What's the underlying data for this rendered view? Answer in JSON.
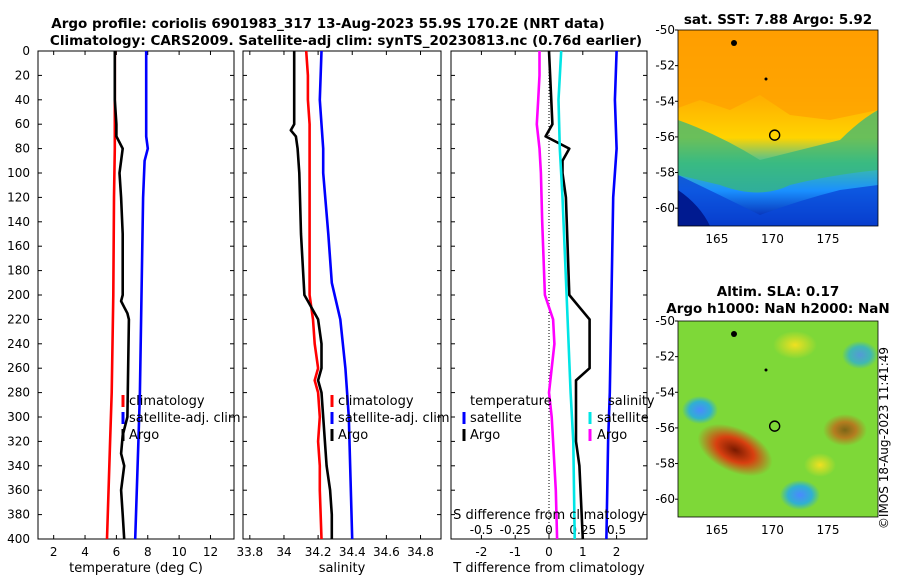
{
  "title_line1": "Argo profile: coriolis 6901983_317 13-Aug-2023 55.9S 170.2E (NRT data)",
  "title_line2": "Climatology: CARS2009. Satellite-adj clim: synTS_20230813.nc (0.76d earlier)",
  "credit": "©IMOS 18-Aug-2023 11:41:49",
  "colors": {
    "climatology": "#ff0000",
    "satellite": "#0000ff",
    "argo": "#000000",
    "salinity_satellite": "#00e5e5",
    "salinity_argo": "#ff00ff",
    "axis": "#000000"
  },
  "chart_data": [
    {
      "type": "line",
      "id": "temperature",
      "xlabel": "temperature (deg C)",
      "ylabel": "",
      "xlim": [
        1,
        13.5
      ],
      "ylim": [
        400,
        0
      ],
      "xticks": [
        2,
        4,
        6,
        8,
        10,
        12
      ],
      "yticks": [
        0,
        20,
        40,
        60,
        80,
        100,
        120,
        140,
        160,
        180,
        200,
        220,
        240,
        260,
        280,
        300,
        320,
        340,
        360,
        380,
        400
      ],
      "legend": [
        "climatology",
        "satellite-adj. clim",
        "Argo"
      ],
      "series": [
        {
          "name": "climatology",
          "color": "#ff0000",
          "depth": [
            0,
            40,
            80,
            120,
            200,
            280,
            320,
            400
          ],
          "values": [
            5.9,
            5.9,
            5.9,
            5.85,
            5.8,
            5.7,
            5.6,
            5.4
          ]
        },
        {
          "name": "satellite-adj. clim",
          "color": "#0000ff",
          "depth": [
            0,
            40,
            70,
            80,
            90,
            120,
            200,
            280,
            320,
            400
          ],
          "values": [
            7.9,
            7.9,
            7.9,
            8.0,
            7.8,
            7.7,
            7.6,
            7.5,
            7.4,
            7.2
          ]
        },
        {
          "name": "Argo",
          "color": "#000000",
          "depth": [
            0,
            20,
            40,
            60,
            70,
            80,
            90,
            100,
            120,
            150,
            180,
            200,
            205,
            210,
            215,
            220,
            300,
            315,
            330,
            340,
            360,
            380,
            400
          ],
          "values": [
            5.9,
            5.9,
            5.9,
            6.0,
            6.0,
            6.4,
            6.3,
            6.2,
            6.3,
            6.4,
            6.4,
            6.4,
            6.3,
            6.5,
            6.7,
            6.8,
            6.7,
            6.4,
            6.3,
            6.5,
            6.3,
            6.4,
            6.5
          ]
        }
      ]
    },
    {
      "type": "line",
      "id": "salinity",
      "xlabel": "salinity",
      "ylabel": "",
      "xlim": [
        33.76,
        34.92
      ],
      "xticks": [
        33.8,
        34.0,
        34.2,
        34.4,
        34.6,
        34.8
      ],
      "xticklabels": [
        "33.8",
        "34",
        "34.2",
        "34.4",
        "34.6",
        "34.8"
      ],
      "legend": [
        "climatology",
        "satellite-adj. clim",
        "Argo"
      ],
      "series": [
        {
          "name": "climatology",
          "color": "#ff0000",
          "depth": [
            0,
            20,
            40,
            60,
            80,
            100,
            150,
            200,
            220,
            240,
            260,
            270,
            280,
            300,
            320,
            340,
            360,
            400
          ],
          "values": [
            34.13,
            34.14,
            34.14,
            34.15,
            34.15,
            34.15,
            34.15,
            34.15,
            34.17,
            34.18,
            34.2,
            34.18,
            34.2,
            34.21,
            34.2,
            34.21,
            34.21,
            34.22
          ]
        },
        {
          "name": "satellite-adj. clim",
          "color": "#0000ff",
          "depth": [
            0,
            40,
            80,
            100,
            150,
            190,
            220,
            260,
            300,
            350,
            400
          ],
          "values": [
            34.22,
            34.21,
            34.23,
            34.23,
            34.26,
            34.28,
            34.33,
            34.36,
            34.38,
            34.39,
            34.4
          ]
        },
        {
          "name": "Argo",
          "color": "#000000",
          "depth": [
            0,
            40,
            60,
            65,
            70,
            80,
            100,
            150,
            200,
            205,
            220,
            240,
            260,
            270,
            280,
            300,
            320,
            340,
            360,
            380,
            400
          ],
          "values": [
            34.06,
            34.06,
            34.06,
            34.04,
            34.07,
            34.08,
            34.09,
            34.1,
            34.12,
            34.14,
            34.2,
            34.22,
            34.22,
            34.2,
            34.22,
            34.23,
            34.24,
            34.25,
            34.27,
            34.28,
            34.28
          ]
        }
      ]
    },
    {
      "type": "line",
      "id": "differences",
      "xlabel": "T difference from climatology",
      "xlabel_top": "S difference from climatology",
      "xlim": [
        -2.9,
        2.9
      ],
      "xticks": [
        -2,
        -1,
        0,
        1,
        2
      ],
      "xticks_top": [
        -0.5,
        -0.25,
        0,
        0.25,
        0.5
      ],
      "xticklabels_top": [
        "-0.5",
        "-0.25",
        "0",
        "0.25",
        "0.5"
      ],
      "legend_left_title": "temperature",
      "legend_right_title": "salinity",
      "legend_left": [
        "satellite",
        "Argo"
      ],
      "legend_right": [
        "satellite",
        "Argo"
      ],
      "series": [
        {
          "name": "T satellite",
          "color": "#0000ff",
          "depth": [
            0,
            40,
            80,
            120,
            200,
            280,
            320,
            400
          ],
          "values": [
            2.0,
            1.95,
            2.0,
            1.9,
            1.85,
            1.8,
            1.75,
            1.7
          ]
        },
        {
          "name": "T Argo",
          "color": "#000000",
          "depth": [
            0,
            60,
            70,
            80,
            90,
            100,
            120,
            200,
            210,
            220,
            260,
            270,
            300,
            320,
            340,
            400
          ],
          "values": [
            0.0,
            0.1,
            -0.1,
            0.6,
            0.4,
            0.4,
            0.5,
            0.6,
            0.9,
            1.2,
            1.2,
            0.8,
            0.8,
            0.8,
            0.9,
            1.0
          ]
        },
        {
          "name": "S satellite",
          "color": "#00e5e5",
          "depth": [
            0,
            40,
            80,
            120,
            200,
            280,
            320,
            400
          ],
          "values": [
            0.09,
            0.07,
            0.08,
            0.1,
            0.13,
            0.16,
            0.18,
            0.19
          ]
        },
        {
          "name": "S Argo",
          "color": "#ff00ff",
          "depth": [
            0,
            20,
            40,
            60,
            80,
            100,
            140,
            200,
            220,
            240,
            260,
            280,
            300,
            320,
            360,
            400
          ],
          "values": [
            -0.07,
            -0.07,
            -0.08,
            -0.09,
            -0.07,
            -0.06,
            -0.05,
            -0.03,
            0.03,
            0.04,
            0.02,
            0.0,
            0.02,
            0.03,
            0.05,
            0.06
          ]
        }
      ]
    },
    {
      "type": "heatmap",
      "id": "sst_map",
      "title": "sat. SST: 7.88 Argo: 5.92",
      "xlim": [
        161.5,
        179.5
      ],
      "ylim": [
        -61,
        -50
      ],
      "xticks": [
        165,
        170,
        175
      ],
      "yticks": [
        -50,
        -52,
        -54,
        -56,
        -58,
        -60
      ],
      "marker": {
        "lon": 170.2,
        "lat": -55.9
      }
    },
    {
      "type": "heatmap",
      "id": "sla_map",
      "title": "Altim. SLA: 0.17",
      "subtitle": "Argo h1000: NaN h2000: NaN",
      "xlim": [
        161.5,
        179.5
      ],
      "ylim": [
        -61,
        -50
      ],
      "xticks": [
        165,
        170,
        175
      ],
      "yticks": [
        -50,
        -52,
        -54,
        -56,
        -58,
        -60
      ],
      "marker": {
        "lon": 170.2,
        "lat": -55.9
      }
    }
  ]
}
